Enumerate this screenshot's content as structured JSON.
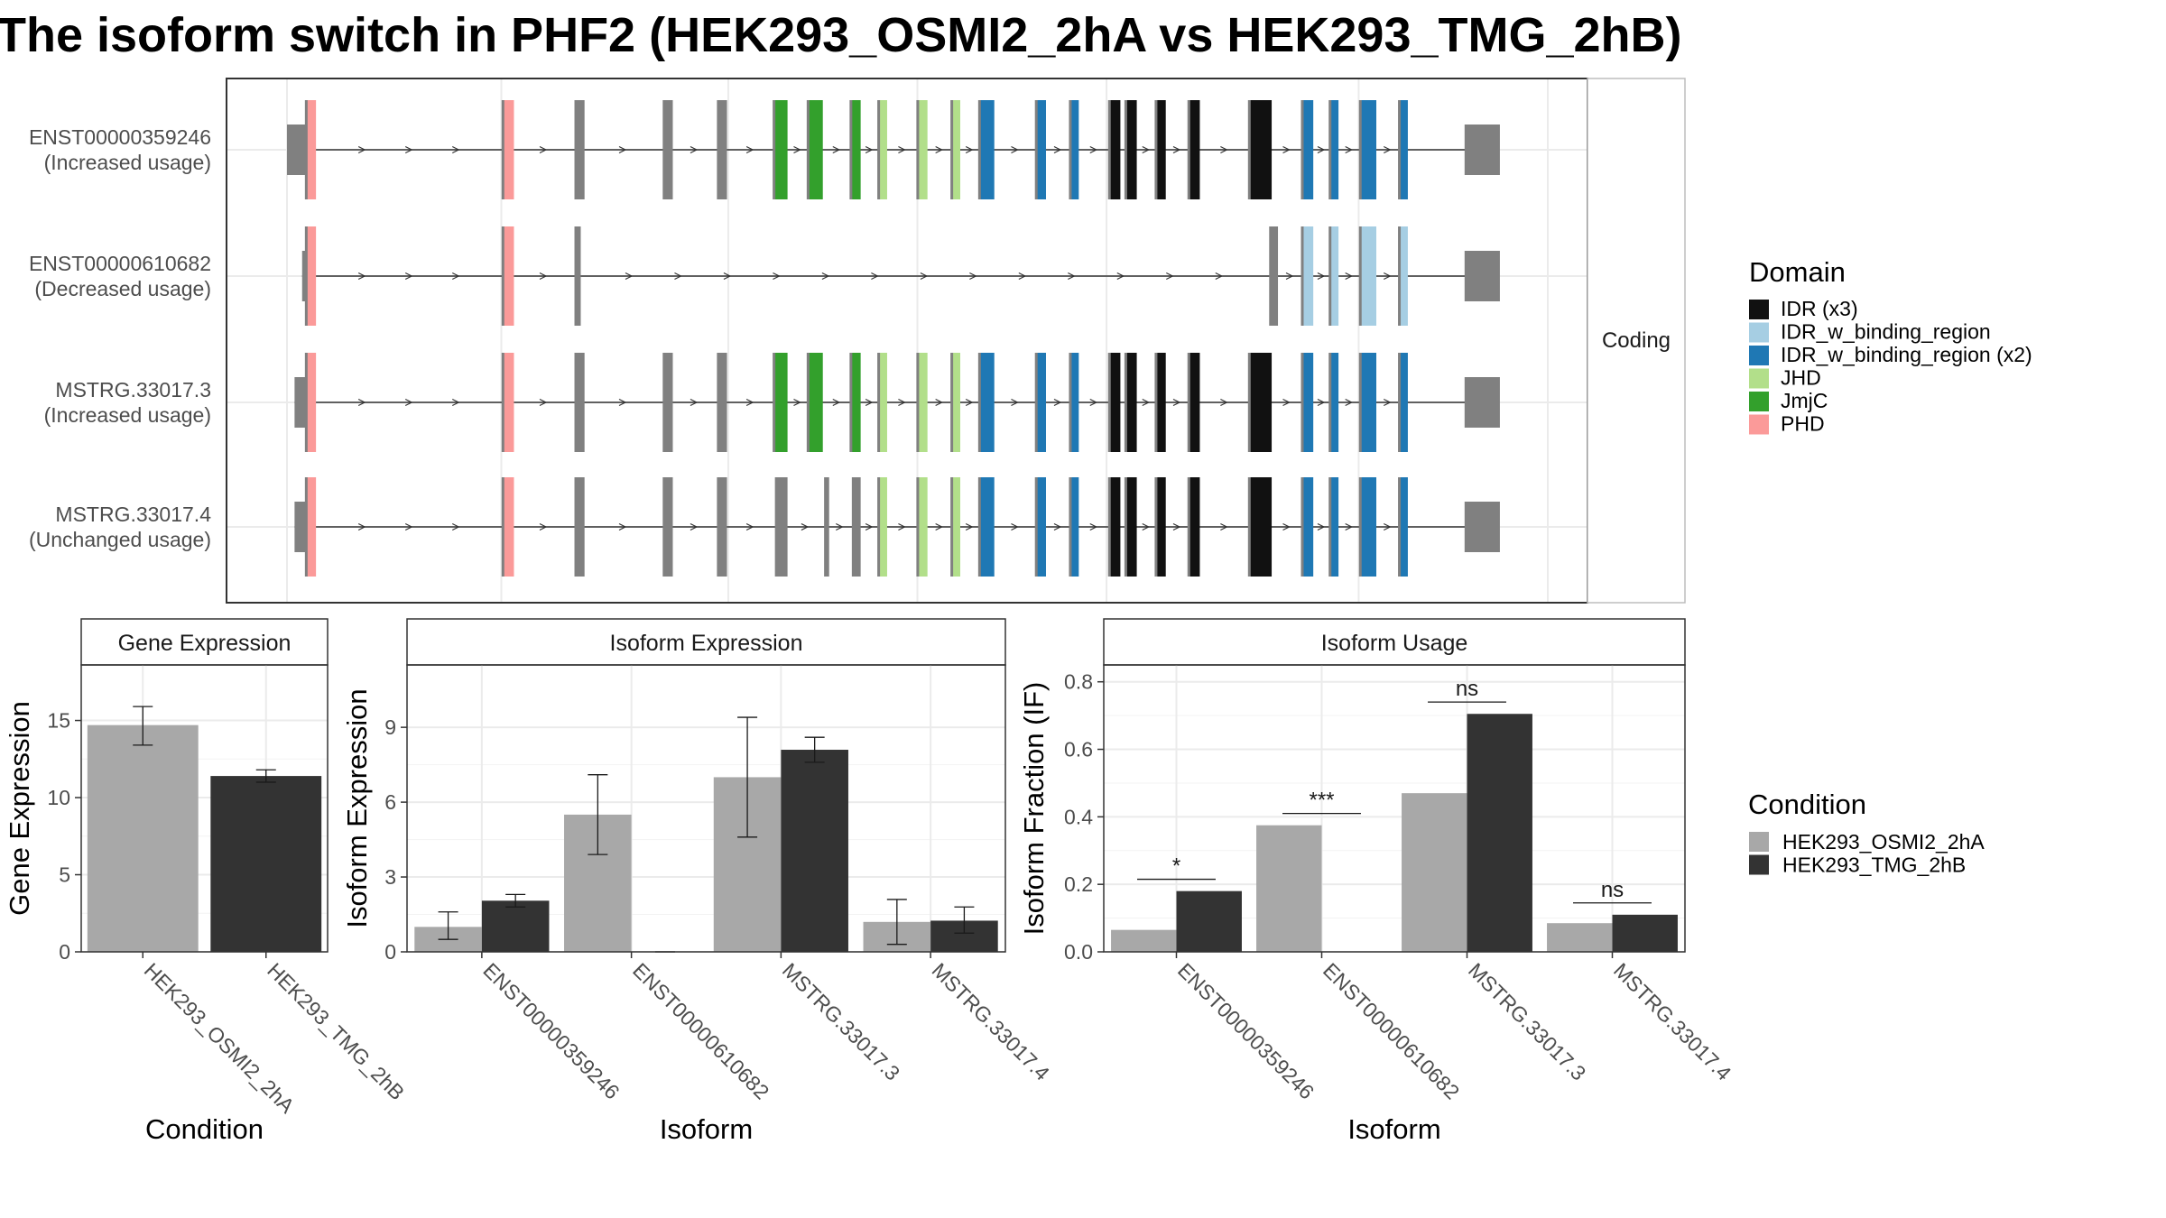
{
  "title": "The isoform switch in PHF2 (HEK293_OSMI2_2hA vs HEK293_TMG_2hB)",
  "colors": {
    "cond_a": "#a8a8a8",
    "cond_b": "#333333",
    "utr": "#808080",
    "intron": "#333333",
    "grid": "#ebebeb",
    "strip": "#ffffff",
    "panel_border": "#333333"
  },
  "structure": {
    "facet_label": "Coding",
    "x_range": [
      0,
      1000
    ],
    "gridlines": [
      0,
      170,
      350,
      500,
      650,
      850,
      1000
    ],
    "isoforms": [
      {
        "id": "ENST00000359246",
        "label_line1": "ENST00000359246",
        "label_line2": "(Increased usage)",
        "span": [
          10,
          940
        ],
        "utr5": [
          0,
          16
        ],
        "utr3": [
          934,
          962
        ],
        "exons": [
          {
            "s": 16,
            "e": 23,
            "d": "PHD"
          },
          {
            "s": 172,
            "e": 180,
            "d": "PHD"
          },
          {
            "s": 228,
            "e": 236,
            "d": null
          },
          {
            "s": 298,
            "e": 306,
            "d": null
          },
          {
            "s": 341,
            "e": 349,
            "d": null
          },
          {
            "s": 387,
            "e": 397,
            "d": "JmjC"
          },
          {
            "s": 414,
            "e": 425,
            "d": "JmjC"
          },
          {
            "s": 448,
            "e": 455,
            "d": "JmjC"
          },
          {
            "s": 470,
            "e": 476,
            "d": "JHD"
          },
          {
            "s": 501,
            "e": 508,
            "d": "JHD"
          },
          {
            "s": 528,
            "e": 534,
            "d": "JHD"
          },
          {
            "s": 550,
            "e": 561,
            "d": "IDR_w_binding_region (x2)"
          },
          {
            "s": 595,
            "e": 602,
            "d": "IDR_w_binding_region (x2)"
          },
          {
            "s": 622,
            "e": 628,
            "d": "IDR_w_binding_region (x2)"
          },
          {
            "s": 653,
            "e": 661,
            "d": "IDR (x3)"
          },
          {
            "s": 666,
            "e": 674,
            "d": "IDR (x3)"
          },
          {
            "s": 690,
            "e": 697,
            "d": "IDR (x3)"
          },
          {
            "s": 716,
            "e": 724,
            "d": "IDR (x3)"
          },
          {
            "s": 764,
            "e": 781,
            "d": "IDR (x3)"
          },
          {
            "s": 806,
            "e": 814,
            "d": "IDR_w_binding_region (x2)"
          },
          {
            "s": 828,
            "e": 834,
            "d": "IDR_w_binding_region (x2)"
          },
          {
            "s": 852,
            "e": 864,
            "d": "IDR_w_binding_region (x2)"
          },
          {
            "s": 883,
            "e": 889,
            "d": "IDR_w_binding_region (x2)"
          }
        ]
      },
      {
        "id": "ENST00000610682",
        "label_line1": "ENST00000610682",
        "label_line2": "(Decreased usage)",
        "span": [
          12,
          940
        ],
        "utr5": [
          12,
          16
        ],
        "utr3": [
          934,
          962
        ],
        "exons": [
          {
            "s": 16,
            "e": 23,
            "d": "PHD"
          },
          {
            "s": 172,
            "e": 180,
            "d": "PHD"
          },
          {
            "s": 228,
            "e": 233,
            "d": null
          },
          {
            "s": 779,
            "e": 786,
            "d": null
          },
          {
            "s": 806,
            "e": 814,
            "d": "IDR_w_binding_region"
          },
          {
            "s": 828,
            "e": 834,
            "d": "IDR_w_binding_region"
          },
          {
            "s": 852,
            "e": 864,
            "d": "IDR_w_binding_region"
          },
          {
            "s": 883,
            "e": 889,
            "d": "IDR_w_binding_region"
          }
        ]
      },
      {
        "id": "MSTRG.33017.3",
        "label_line1": "MSTRG.33017.3",
        "label_line2": "(Increased usage)",
        "span": [
          6,
          940
        ],
        "utr5": [
          6,
          16
        ],
        "utr3": [
          934,
          962
        ],
        "exons": [
          {
            "s": 16,
            "e": 23,
            "d": "PHD"
          },
          {
            "s": 172,
            "e": 180,
            "d": "PHD"
          },
          {
            "s": 228,
            "e": 236,
            "d": null
          },
          {
            "s": 298,
            "e": 306,
            "d": null
          },
          {
            "s": 341,
            "e": 349,
            "d": null
          },
          {
            "s": 387,
            "e": 397,
            "d": "JmjC"
          },
          {
            "s": 414,
            "e": 425,
            "d": "JmjC"
          },
          {
            "s": 448,
            "e": 455,
            "d": "JmjC"
          },
          {
            "s": 470,
            "e": 476,
            "d": "JHD"
          },
          {
            "s": 501,
            "e": 508,
            "d": "JHD"
          },
          {
            "s": 528,
            "e": 534,
            "d": "JHD"
          },
          {
            "s": 550,
            "e": 561,
            "d": "IDR_w_binding_region (x2)"
          },
          {
            "s": 595,
            "e": 602,
            "d": "IDR_w_binding_region (x2)"
          },
          {
            "s": 622,
            "e": 628,
            "d": "IDR_w_binding_region (x2)"
          },
          {
            "s": 653,
            "e": 661,
            "d": "IDR (x3)"
          },
          {
            "s": 666,
            "e": 674,
            "d": "IDR (x3)"
          },
          {
            "s": 690,
            "e": 697,
            "d": "IDR (x3)"
          },
          {
            "s": 716,
            "e": 724,
            "d": "IDR (x3)"
          },
          {
            "s": 764,
            "e": 781,
            "d": "IDR (x3)"
          },
          {
            "s": 806,
            "e": 814,
            "d": "IDR_w_binding_region (x2)"
          },
          {
            "s": 828,
            "e": 834,
            "d": "IDR_w_binding_region (x2)"
          },
          {
            "s": 852,
            "e": 864,
            "d": "IDR_w_binding_region (x2)"
          },
          {
            "s": 883,
            "e": 889,
            "d": "IDR_w_binding_region (x2)"
          }
        ]
      },
      {
        "id": "MSTRG.33017.4",
        "label_line1": "MSTRG.33017.4",
        "label_line2": "(Unchanged usage)",
        "span": [
          6,
          940
        ],
        "utr5": [
          6,
          16
        ],
        "utr3": [
          934,
          962
        ],
        "exons": [
          {
            "s": 16,
            "e": 23,
            "d": "PHD"
          },
          {
            "s": 172,
            "e": 180,
            "d": "PHD"
          },
          {
            "s": 228,
            "e": 236,
            "d": null
          },
          {
            "s": 298,
            "e": 306,
            "d": null
          },
          {
            "s": 341,
            "e": 349,
            "d": null
          },
          {
            "s": 387,
            "e": 397,
            "d": null
          },
          {
            "s": 426,
            "e": 430,
            "d": null
          },
          {
            "s": 448,
            "e": 455,
            "d": null
          },
          {
            "s": 470,
            "e": 476,
            "d": "JHD"
          },
          {
            "s": 501,
            "e": 508,
            "d": "JHD"
          },
          {
            "s": 528,
            "e": 534,
            "d": "JHD"
          },
          {
            "s": 550,
            "e": 561,
            "d": "IDR_w_binding_region (x2)"
          },
          {
            "s": 595,
            "e": 602,
            "d": "IDR_w_binding_region (x2)"
          },
          {
            "s": 622,
            "e": 628,
            "d": "IDR_w_binding_region (x2)"
          },
          {
            "s": 653,
            "e": 661,
            "d": "IDR (x3)"
          },
          {
            "s": 666,
            "e": 674,
            "d": "IDR (x3)"
          },
          {
            "s": 690,
            "e": 697,
            "d": "IDR (x3)"
          },
          {
            "s": 716,
            "e": 724,
            "d": "IDR (x3)"
          },
          {
            "s": 764,
            "e": 781,
            "d": "IDR (x3)"
          },
          {
            "s": 806,
            "e": 814,
            "d": "IDR_w_binding_region (x2)"
          },
          {
            "s": 828,
            "e": 834,
            "d": "IDR_w_binding_region (x2)"
          },
          {
            "s": 852,
            "e": 864,
            "d": "IDR_w_binding_region (x2)"
          },
          {
            "s": 883,
            "e": 889,
            "d": "IDR_w_binding_region (x2)"
          }
        ]
      }
    ]
  },
  "legends": {
    "domain_title": "Domain",
    "domain_items": [
      {
        "key": "IDR (x3)",
        "label": "IDR (x3)",
        "color": "#111111"
      },
      {
        "key": "IDR_w_binding_region",
        "label": "IDR_w_binding_region",
        "color": "#a6cee3"
      },
      {
        "key": "IDR_w_binding_region (x2)",
        "label": "IDR_w_binding_region (x2)",
        "color": "#1f78b4"
      },
      {
        "key": "JHD",
        "label": "JHD",
        "color": "#b2df8a"
      },
      {
        "key": "JmjC",
        "label": "JmjC",
        "color": "#33a02c"
      },
      {
        "key": "PHD",
        "label": "PHD",
        "color": "#fb9a99"
      }
    ],
    "condition_title": "Condition",
    "condition_items": [
      {
        "label": "HEK293_OSMI2_2hA",
        "color": "#a8a8a8"
      },
      {
        "label": "HEK293_TMG_2hB",
        "color": "#333333"
      }
    ]
  },
  "chart_data": [
    {
      "type": "bar",
      "title": "Gene Expression",
      "xlabel": "Condition",
      "ylabel": "Gene Expression",
      "ylim": [
        0,
        18.6
      ],
      "yticks": [
        0,
        5,
        10,
        15
      ],
      "categories": [
        "HEK293_OSMI2_2hA",
        "HEK293_TMG_2hB"
      ],
      "values": [
        14.7,
        11.4
      ],
      "error_low": [
        13.4,
        11.0
      ],
      "error_high": [
        15.9,
        11.8
      ],
      "grid": true
    },
    {
      "type": "bar",
      "title": "Isoform Expression",
      "xlabel": "Isoform",
      "ylabel": "Isoform Expression",
      "ylim": [
        0,
        11.5
      ],
      "yticks": [
        0,
        3,
        6,
        9
      ],
      "categories": [
        "ENST00000359246",
        "ENST00000610682",
        "MSTRG.33017.3",
        "MSTRG.33017.4"
      ],
      "series": [
        {
          "name": "HEK293_OSMI2_2hA",
          "values": [
            1.0,
            5.5,
            7.0,
            1.2
          ],
          "error_low": [
            0.5,
            3.9,
            4.6,
            0.3
          ],
          "error_high": [
            1.6,
            7.1,
            9.4,
            2.1
          ]
        },
        {
          "name": "HEK293_TMG_2hB",
          "values": [
            2.05,
            0.0,
            8.1,
            1.25
          ],
          "error_low": [
            1.8,
            0.0,
            7.6,
            0.75
          ],
          "error_high": [
            2.3,
            0.0,
            8.6,
            1.8
          ]
        }
      ],
      "grid": true
    },
    {
      "type": "bar",
      "title": "Isoform Usage",
      "xlabel": "Isoform",
      "ylabel": "Isoform Fraction (IF)",
      "ylim": [
        0,
        0.85
      ],
      "yticks": [
        0.0,
        0.2,
        0.4,
        0.6,
        0.8
      ],
      "ytick_labels": [
        "0.0",
        "0.2",
        "0.4",
        "0.6",
        "0.8"
      ],
      "categories": [
        "ENST00000359246",
        "ENST00000610682",
        "MSTRG.33017.3",
        "MSTRG.33017.4"
      ],
      "series": [
        {
          "name": "HEK293_OSMI2_2hA",
          "values": [
            0.065,
            0.375,
            0.47,
            0.085
          ]
        },
        {
          "name": "HEK293_TMG_2hB",
          "values": [
            0.18,
            0.0,
            0.705,
            0.11
          ]
        }
      ],
      "significance": [
        {
          "label": "*",
          "y": 0.215
        },
        {
          "label": "***",
          "y": 0.41
        },
        {
          "label": "ns",
          "y": 0.74
        },
        {
          "label": "ns",
          "y": 0.145
        }
      ],
      "grid": true
    }
  ]
}
